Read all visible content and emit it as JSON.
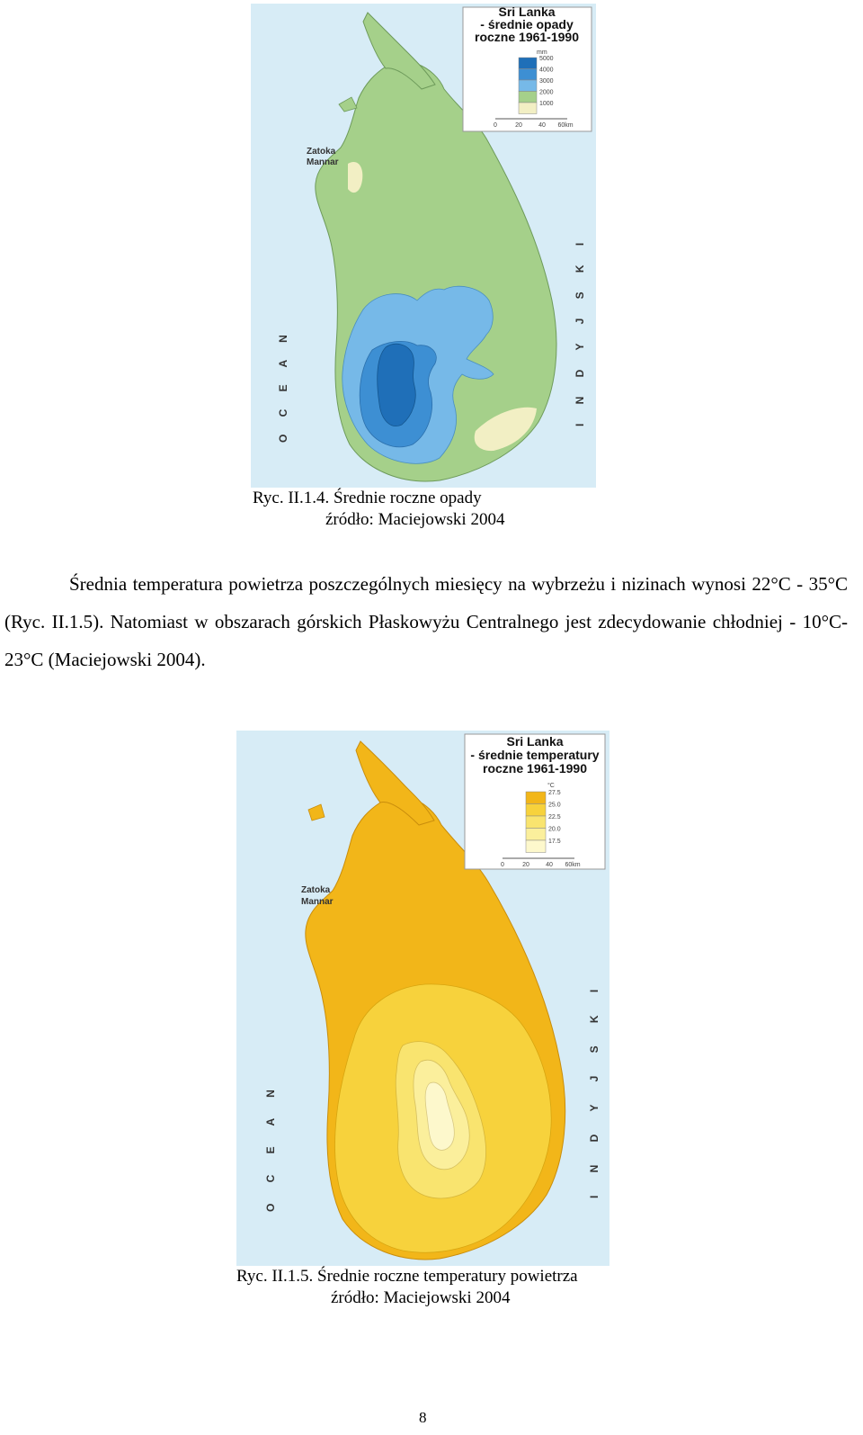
{
  "figure1": {
    "legend_title": [
      "Sri Lanka",
      "- średnie opady",
      "roczne 1961-1990"
    ],
    "legend_unit": "mm",
    "legend_values": [
      "5000",
      "4000",
      "3000",
      "2000",
      "1000"
    ],
    "legend_colors": [
      "#1f6fb8",
      "#3d8fd3",
      "#76b9e8",
      "#a5d08a",
      "#f2efc4"
    ],
    "scale_labels": [
      "0",
      "20",
      "40",
      "60km"
    ],
    "gulf_label": [
      "Zatoka",
      "Mannar"
    ],
    "ocean_label_left": "O C E A N",
    "ocean_label_right": "I N D Y J S K I",
    "caption_line1": "Ryc. II.1.4. Średnie roczne opady",
    "caption_line2": "źródło: Maciejowski 2004"
  },
  "paragraph": "Średnia temperatura powietrza poszczególnych miesięcy na wybrzeżu i nizinach wynosi 22°C - 35°C (Ryc. II.1.5). Natomiast w obszarach górskich Płaskowyżu Centralnego jest zdecydowanie chłodniej - 10°C-23°C (Maciejowski 2004).",
  "figure2": {
    "legend_title": [
      "Sri Lanka",
      "- średnie temperatury",
      "roczne 1961-1990"
    ],
    "legend_unit": "°C",
    "legend_values": [
      "27.5",
      "25.0",
      "22.5",
      "20.0",
      "17.5"
    ],
    "legend_colors": [
      "#f2b619",
      "#f7d23c",
      "#f9e46f",
      "#fbef9c",
      "#fdf8cc"
    ],
    "scale_labels": [
      "0",
      "20",
      "40",
      "60km"
    ],
    "gulf_label": [
      "Zatoka",
      "Mannar"
    ],
    "ocean_label_left": "O C E A N",
    "ocean_label_right": "I N D Y J S K I",
    "caption_line1": "Ryc.   II.1.5. Średnie roczne temperatury powietrza",
    "caption_line2": "źródło: Maciejowski 2004"
  },
  "page_number": "8",
  "colors": {
    "sea": "#d7ecf6",
    "land_rain": "#a5d08a",
    "land_temp": "#f2b619"
  }
}
